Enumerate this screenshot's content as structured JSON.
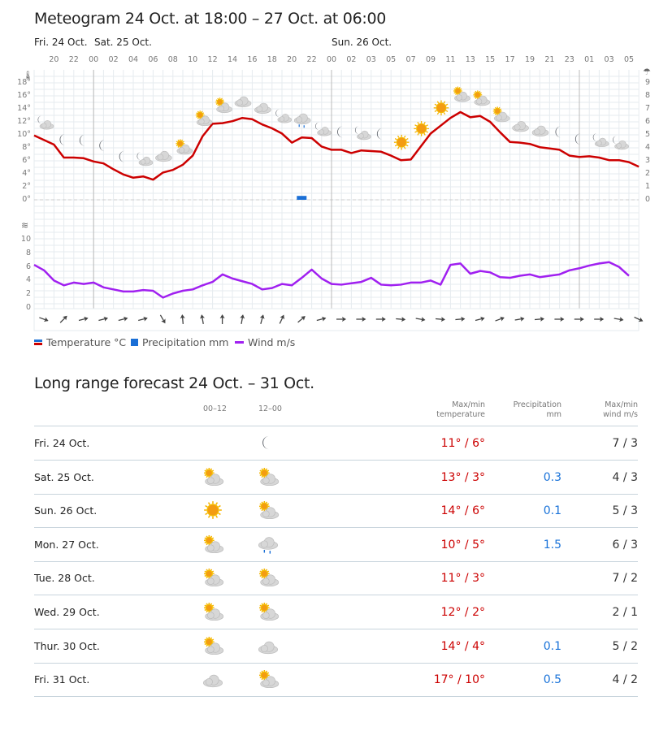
{
  "meteogram": {
    "title": "Meteogram 24 Oct. at 18:00 – 27 Oct. at 06:00",
    "days": [
      "Fri. 24 Oct.",
      "Sat. 25 Oct.",
      "Sun. 26 Oct."
    ],
    "hour_labels": [
      "20",
      "22",
      "00",
      "02",
      "04",
      "06",
      "08",
      "10",
      "12",
      "14",
      "16",
      "18",
      "20",
      "22",
      "00",
      "02",
      "03",
      "05",
      "07",
      "09",
      "11",
      "13",
      "15",
      "17",
      "19",
      "21",
      "23",
      "01",
      "03",
      "05"
    ],
    "temp_ticks": [
      "18°",
      "16°",
      "14°",
      "12°",
      "10°",
      "8°",
      "6°",
      "4°",
      "2°",
      "0°"
    ],
    "precip_ticks": [
      "9",
      "8",
      "7",
      "6",
      "5",
      "4",
      "3",
      "2",
      "1",
      "0"
    ],
    "wind_ticks": [
      "10",
      "8",
      "6",
      "4",
      "2",
      "0"
    ],
    "legend": {
      "temperature": "Temperature °C",
      "precipitation": "Precipitation mm",
      "wind": "Wind m/s"
    },
    "colors": {
      "temperature": "#cc0000",
      "precipitation": "#1a6fd6",
      "wind": "#a020f0"
    }
  },
  "chart_data": {
    "type": "line",
    "title": "Meteogram 24 Oct. at 18:00 – 27 Oct. at 06:00",
    "x_unit": "hours from 24 Oct 18:00",
    "temperature_c": [
      9.9,
      9.2,
      8.5,
      6.5,
      6.5,
      6.4,
      5.9,
      5.6,
      4.7,
      3.9,
      3.4,
      3.6,
      3.1,
      4.2,
      4.6,
      5.4,
      6.8,
      9.8,
      11.7,
      11.8,
      12.1,
      12.6,
      12.4,
      11.6,
      11.0,
      10.2,
      8.8,
      9.6,
      9.5,
      8.2,
      7.7,
      7.7,
      7.2,
      7.6,
      7.5,
      7.4,
      6.8,
      6.1,
      6.2,
      8.2,
      10.2,
      11.4,
      12.6,
      13.5,
      12.7,
      12.9,
      12.0,
      10.4,
      8.9,
      8.8,
      8.6,
      8.1,
      7.9,
      7.7,
      6.8,
      6.6,
      6.7,
      6.5,
      6.1,
      6.1,
      5.8,
      5.1
    ],
    "wind_ms": [
      6.3,
      5.5,
      4.0,
      3.3,
      3.7,
      3.5,
      3.7,
      3.0,
      2.7,
      2.4,
      2.4,
      2.6,
      2.5,
      1.5,
      2.1,
      2.5,
      2.7,
      3.3,
      3.8,
      4.9,
      4.3,
      3.9,
      3.5,
      2.7,
      2.9,
      3.5,
      3.3,
      4.4,
      5.6,
      4.3,
      3.5,
      3.4,
      3.6,
      3.8,
      4.4,
      3.4,
      3.3,
      3.4,
      3.7,
      3.7,
      4.0,
      3.4,
      6.3,
      6.5,
      5.0,
      5.4,
      5.2,
      4.5,
      4.4,
      4.7,
      4.9,
      4.5,
      4.7,
      4.9,
      5.5,
      5.8,
      6.2,
      6.5,
      6.7,
      6.0,
      4.7
    ],
    "precipitation_mm": [
      {
        "hour": 27,
        "value": 0.3
      }
    ],
    "wind_direction_deg": [
      20,
      -45,
      -15,
      -15,
      -15,
      -15,
      60,
      -95,
      -100,
      -90,
      -80,
      -75,
      -65,
      -40,
      -15,
      0,
      0,
      0,
      5,
      10,
      5,
      -5,
      -15,
      -20,
      -10,
      -5,
      0,
      0,
      0,
      10,
      25
    ],
    "symbols": [
      "night-partly",
      "moon",
      "moon",
      "moon",
      "moon",
      "night-partly",
      "cloud",
      "partly-sunny",
      "partly-sunny",
      "partly-sunny",
      "cloud",
      "cloud",
      "night-partly",
      "rain",
      "night-partly",
      "moon",
      "night-partly",
      "moon",
      "sun",
      "sun",
      "sun",
      "partly-sunny",
      "partly-sunny",
      "partly-sunny",
      "cloud",
      "cloud",
      "moon",
      "moon",
      "night-partly",
      "night-partly"
    ],
    "temp_ylim": [
      0,
      18
    ],
    "precip_ylim": [
      0,
      9
    ],
    "wind_ylim": [
      0,
      10
    ]
  },
  "longrange": {
    "title": "Long range forecast 24 Oct. – 31 Oct.",
    "headers": {
      "p1": "00–12",
      "p2": "12–00",
      "temp1": "Max/min",
      "temp2": "temperature",
      "prec1": "Precipitation",
      "prec2": "mm",
      "wind1": "Max/min",
      "wind2": "wind m/s"
    },
    "rows": [
      {
        "date": "Fri. 24 Oct.",
        "i1": "",
        "i2": "moon",
        "max": "11°",
        "min": "6°",
        "precip": "",
        "wmax": "7",
        "wmin": "3"
      },
      {
        "date": "Sat. 25 Oct.",
        "i1": "partly-sunny",
        "i2": "partly-sunny",
        "max": "13°",
        "min": "3°",
        "precip": "0.3",
        "wmax": "4",
        "wmin": "3"
      },
      {
        "date": "Sun. 26 Oct.",
        "i1": "sun",
        "i2": "partly-sunny",
        "max": "14°",
        "min": "6°",
        "precip": "0.1",
        "wmax": "5",
        "wmin": "3"
      },
      {
        "date": "Mon. 27 Oct.",
        "i1": "partly-sunny",
        "i2": "rain",
        "max": "10°",
        "min": "5°",
        "precip": "1.5",
        "wmax": "6",
        "wmin": "3"
      },
      {
        "date": "Tue. 28 Oct.",
        "i1": "partly-sunny",
        "i2": "partly-sunny",
        "max": "11°",
        "min": "3°",
        "precip": "",
        "wmax": "7",
        "wmin": "2"
      },
      {
        "date": "Wed. 29 Oct.",
        "i1": "partly-sunny",
        "i2": "partly-sunny",
        "max": "12°",
        "min": "2°",
        "precip": "",
        "wmax": "2",
        "wmin": "1"
      },
      {
        "date": "Thur. 30 Oct.",
        "i1": "partly-sunny",
        "i2": "cloud",
        "max": "14°",
        "min": "4°",
        "precip": "0.1",
        "wmax": "5",
        "wmin": "2"
      },
      {
        "date": "Fri. 31 Oct.",
        "i1": "cloud",
        "i2": "partly-sunny",
        "max": "17°",
        "min": "10°",
        "precip": "0.5",
        "wmax": "4",
        "wmin": "2"
      }
    ]
  }
}
